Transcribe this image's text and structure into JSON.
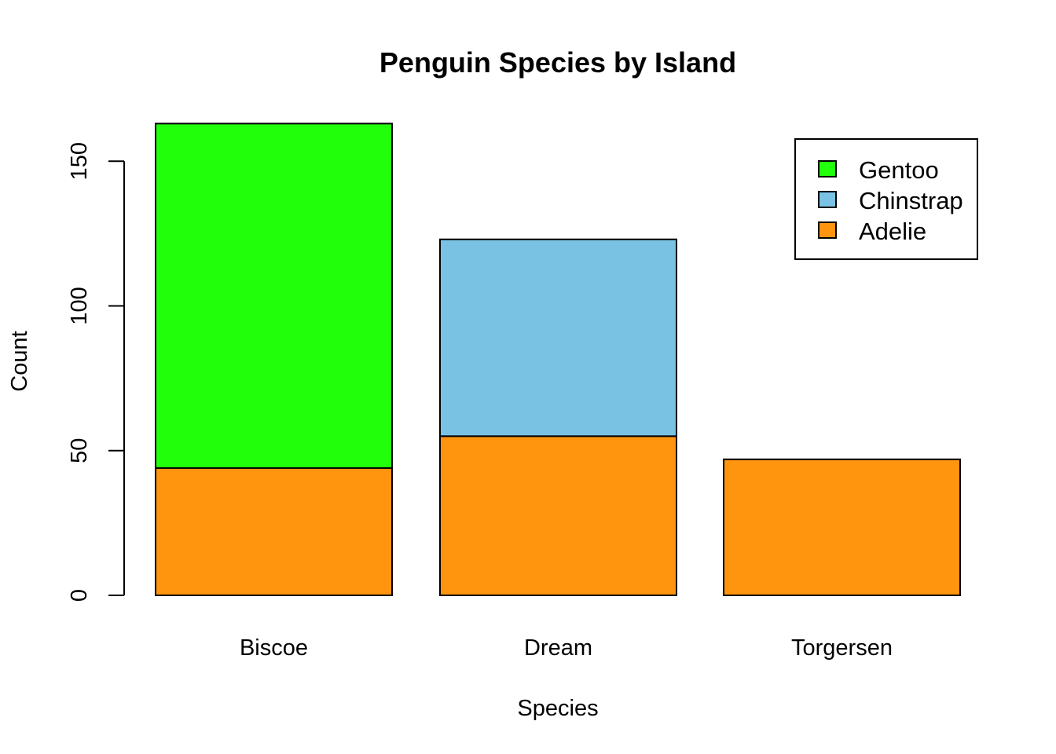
{
  "chart_data": {
    "type": "bar",
    "stacked": true,
    "title": "Penguin Species by Island",
    "xlabel": "Species",
    "ylabel": "Count",
    "categories": [
      "Biscoe",
      "Dream",
      "Torgersen"
    ],
    "series": [
      {
        "name": "Adelie",
        "values": [
          44,
          55,
          47
        ],
        "color": "#FF940F"
      },
      {
        "name": "Chinstrap",
        "values": [
          0,
          68,
          0
        ],
        "color": "#7AC2E4"
      },
      {
        "name": "Gentoo",
        "values": [
          119,
          0,
          0
        ],
        "color": "#22FF0B"
      }
    ],
    "yticks": [
      0,
      50,
      100,
      150
    ],
    "ylim": [
      0,
      163
    ],
    "legend": {
      "position": "top-right",
      "order": [
        "Gentoo",
        "Chinstrap",
        "Adelie"
      ]
    },
    "grid": false
  }
}
